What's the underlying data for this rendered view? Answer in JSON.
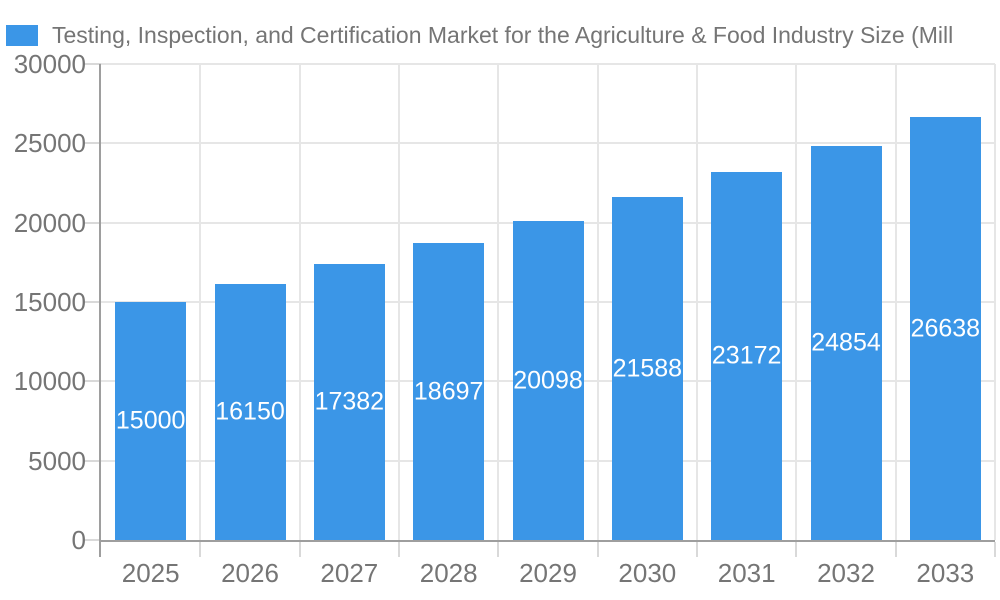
{
  "legend": {
    "swatch_icon": "series-color-square",
    "label": "Testing, Inspection, and Certification Market for the Agriculture & Food Industry Size (Mill"
  },
  "chart_data": {
    "type": "bar",
    "title": "Testing, Inspection, and Certification Market for the Agriculture & Food Industry Size (Mill",
    "categories": [
      "2025",
      "2026",
      "2027",
      "2028",
      "2029",
      "2030",
      "2031",
      "2032",
      "2033"
    ],
    "series": [
      {
        "name": "Testing, Inspection, and Certification Market for the Agriculture & Food Industry Size (Mill",
        "values": [
          15000,
          16150,
          17382,
          18697,
          20098,
          21588,
          23172,
          24854,
          26638
        ]
      }
    ],
    "data_labels": [
      "15000",
      "16150",
      "17382",
      "18697",
      "20098",
      "21588",
      "23172",
      "24854",
      "26638"
    ],
    "xlabel": "",
    "ylabel": "",
    "ylim": [
      0,
      30000
    ],
    "y_ticks": [
      0,
      5000,
      10000,
      15000,
      20000,
      25000,
      30000
    ],
    "grid": "on",
    "legend_position": "top-left"
  },
  "colors": {
    "bar": "#3B96E7",
    "axis_text": "#757575",
    "grid_line": "#e6e6e6",
    "axis_line": "#9e9e9e",
    "tick_line": "#d9d9d9",
    "annotation_text": "#ffffff",
    "background": "#ffffff"
  }
}
